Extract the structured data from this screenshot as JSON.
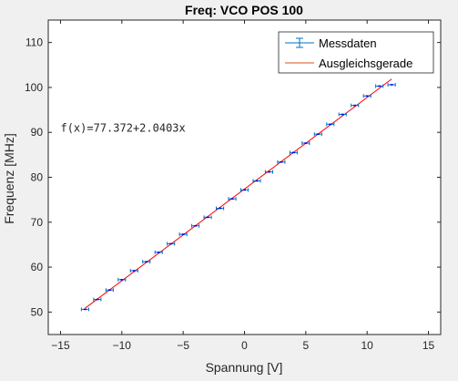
{
  "chart_data": {
    "type": "scatter",
    "title": "Freq: VCO POS 100",
    "xlabel": "Spannung [V]",
    "ylabel": "Frequenz [MHz]",
    "xlim": [
      -16,
      16
    ],
    "ylim": [
      45,
      115
    ],
    "xticks": [
      -15,
      -10,
      -5,
      0,
      5,
      10,
      15
    ],
    "yticks": [
      50,
      60,
      70,
      80,
      90,
      100,
      110
    ],
    "grid": false,
    "legend_position": "top-right",
    "series": [
      {
        "name": "Messdaten",
        "kind": "errorbar",
        "color": "#0072bd",
        "marker_color": "#0000ff",
        "x": [
          -13,
          -12,
          -11,
          -10,
          -9,
          -8,
          -7,
          -6,
          -5,
          -4,
          -3,
          -2,
          -1,
          0,
          1,
          2,
          3,
          4,
          5,
          6,
          7,
          8,
          9,
          10,
          11,
          12
        ],
        "y": [
          50.6,
          52.8,
          54.9,
          57.2,
          59.2,
          61.2,
          63.3,
          65.2,
          67.3,
          69.2,
          71.1,
          73.1,
          75.2,
          77.2,
          79.2,
          81.2,
          83.4,
          85.5,
          87.6,
          89.6,
          91.8,
          94.0,
          96.0,
          98.1,
          100.3,
          100.6
        ],
        "xerr": [
          0.3,
          0.3,
          0.3,
          0.3,
          0.3,
          0.3,
          0.3,
          0.3,
          0.3,
          0.3,
          0.3,
          0.3,
          0.3,
          0.3,
          0.3,
          0.3,
          0.3,
          0.3,
          0.3,
          0.3,
          0.3,
          0.3,
          0.3,
          0.3,
          0.3,
          0.3
        ]
      },
      {
        "name": "Ausgleichsgerade",
        "kind": "line",
        "color": "#d95319",
        "fit_color": "#ff0000",
        "intercept": 77.372,
        "slope": 2.0403,
        "x": [
          -13,
          12
        ],
        "y": [
          50.848,
          101.856
        ]
      }
    ],
    "annotations": [
      {
        "text": "f(x)=77.372+2.0403x",
        "x": -15,
        "y": 91
      }
    ]
  }
}
